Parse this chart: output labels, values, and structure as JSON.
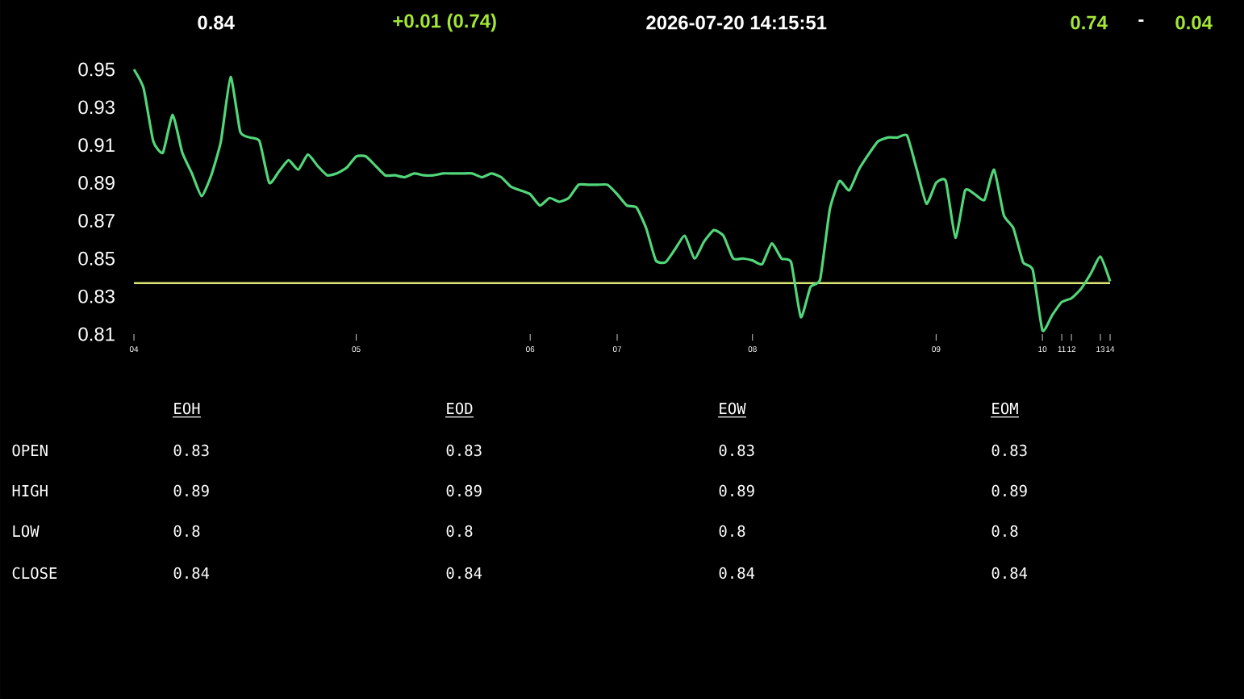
{
  "chart_data": [
    {
      "type": "line",
      "annotations": [
        "0.84",
        "+0.01  (0.74)",
        "2026-07-20  14:15:51",
        "0.74",
        "-",
        "0.04"
      ],
      "categories": [
        "04",
        null,
        null,
        null,
        null,
        null,
        null,
        null,
        null,
        null,
        null,
        null,
        null,
        null,
        null,
        null,
        null,
        null,
        null,
        null,
        null,
        null,
        null,
        "05",
        null,
        null,
        null,
        null,
        null,
        null,
        null,
        null,
        null,
        null,
        null,
        null,
        null,
        null,
        null,
        null,
        null,
        "06",
        null,
        null,
        null,
        null,
        null,
        null,
        null,
        null,
        "07",
        null,
        null,
        null,
        null,
        null,
        null,
        null,
        null,
        null,
        null,
        null,
        null,
        null,
        "08",
        null,
        null,
        null,
        null,
        null,
        null,
        null,
        null,
        null,
        null,
        null,
        null,
        null,
        null,
        null,
        null,
        null,
        null,
        "09",
        null,
        null,
        null,
        null,
        null,
        null,
        null,
        null,
        null,
        null,
        "10",
        null,
        "11",
        "12",
        null,
        null,
        "13",
        "14"
      ],
      "values": [
        0.95,
        0.94,
        0.912,
        0.906,
        0.926,
        0.906,
        0.895,
        0.883,
        0.894,
        0.912,
        0.946,
        0.917,
        0.914,
        0.912,
        0.89,
        0.896,
        0.902,
        0.897,
        0.905,
        0.899,
        0.894,
        0.895,
        0.898,
        0.904,
        0.904,
        0.899,
        0.894,
        0.894,
        0.893,
        0.895,
        0.894,
        0.894,
        0.895,
        0.895,
        0.895,
        0.895,
        0.893,
        0.895,
        0.893,
        0.888,
        0.886,
        0.884,
        0.878,
        0.882,
        0.88,
        0.882,
        0.889,
        0.889,
        0.889,
        0.889,
        0.884,
        0.878,
        0.877,
        0.866,
        0.849,
        0.848,
        0.855,
        0.862,
        0.85,
        0.859,
        0.865,
        0.862,
        0.85,
        0.85,
        0.849,
        0.847,
        0.858,
        0.85,
        0.848,
        0.819,
        0.835,
        0.839,
        0.876,
        0.891,
        0.886,
        0.897,
        0.905,
        0.912,
        0.914,
        0.914,
        0.915,
        0.897,
        0.879,
        0.89,
        0.891,
        0.861,
        0.886,
        0.884,
        0.881,
        0.897,
        0.873,
        0.866,
        0.848,
        0.844,
        0.812,
        0.82,
        0.827,
        0.829,
        0.834,
        0.842,
        0.851,
        0.838
      ],
      "color": "#52d67a",
      "ylim": [
        0.81,
        0.95
      ],
      "yticks": [
        0.81,
        0.83,
        0.85,
        0.87,
        0.89,
        0.91,
        0.93,
        0.95
      ],
      "ref_lines": [
        {
          "axis": "y",
          "value": 0.837,
          "color": "#dce775"
        }
      ]
    },
    {
      "type": "other",
      "categories": [
        "EOH",
        "EOD",
        "EOW",
        "EOM"
      ],
      "y_categories": [
        "OPEN",
        "HIGH",
        "LOW",
        "CLOSE"
      ],
      "cell_labels": [
        [
          "0.83",
          "0.83",
          "0.83",
          "0.83"
        ],
        [
          "0.89",
          "0.89",
          "0.89",
          "0.89"
        ],
        [
          "0.8",
          "0.8",
          "0.8",
          "0.8"
        ],
        [
          "0.84",
          "0.84",
          "0.84",
          "0.84"
        ]
      ]
    }
  ]
}
